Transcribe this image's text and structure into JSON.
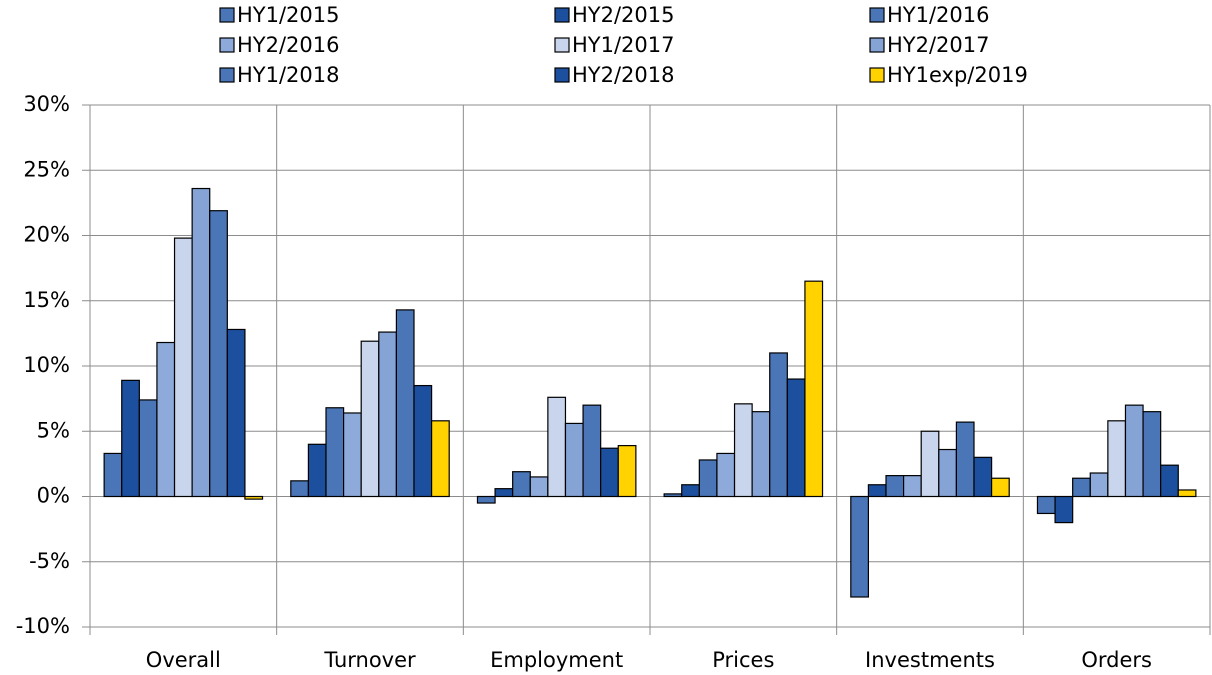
{
  "chart_data": {
    "type": "bar",
    "categories": [
      "Overall",
      "Turnover",
      "Employment",
      "Prices",
      "Investments",
      "Orders"
    ],
    "series": [
      {
        "name": "HY1/2015",
        "color": "#4a76b8",
        "values": [
          3.3,
          1.2,
          -0.5,
          0.2,
          -7.7,
          -1.3
        ]
      },
      {
        "name": "HY2/2015",
        "color": "#1d4f9f",
        "values": [
          8.9,
          4.0,
          0.6,
          0.9,
          0.9,
          -2.0
        ]
      },
      {
        "name": "HY1/2016",
        "color": "#4a76b8",
        "values": [
          7.4,
          6.8,
          1.9,
          2.8,
          1.6,
          1.4
        ]
      },
      {
        "name": "HY2/2016",
        "color": "#8eaadb",
        "values": [
          11.8,
          6.4,
          1.5,
          3.3,
          1.6,
          1.8
        ]
      },
      {
        "name": "HY1/2017",
        "color": "#c8d5ec",
        "values": [
          19.8,
          11.9,
          7.6,
          7.1,
          5.0,
          5.8
        ]
      },
      {
        "name": "HY2/2017",
        "color": "#86a3d6",
        "values": [
          23.6,
          12.6,
          5.6,
          6.5,
          3.6,
          7.0
        ]
      },
      {
        "name": "HY1/2018",
        "color": "#4a76b8",
        "values": [
          21.9,
          14.3,
          7.0,
          11.0,
          5.7,
          6.5
        ]
      },
      {
        "name": "HY2/2018",
        "color": "#1d4f9f",
        "values": [
          12.8,
          8.5,
          3.7,
          9.0,
          3.0,
          2.4
        ]
      },
      {
        "name": "HY1exp/2019",
        "color": "#ffd200",
        "values": [
          -0.2,
          5.8,
          3.9,
          16.5,
          1.4,
          0.5
        ]
      }
    ],
    "ylim": [
      -10,
      30
    ],
    "yticks": [
      {
        "value": -10,
        "label": "-10%"
      },
      {
        "value": -5,
        "label": "-5%"
      },
      {
        "value": 0,
        "label": "0%"
      },
      {
        "value": 5,
        "label": "5%"
      },
      {
        "value": 10,
        "label": "10%"
      },
      {
        "value": 15,
        "label": "15%"
      },
      {
        "value": 20,
        "label": "20%"
      },
      {
        "value": 25,
        "label": "25%"
      },
      {
        "value": 30,
        "label": "30%"
      }
    ],
    "grid": true,
    "legend": "top"
  }
}
